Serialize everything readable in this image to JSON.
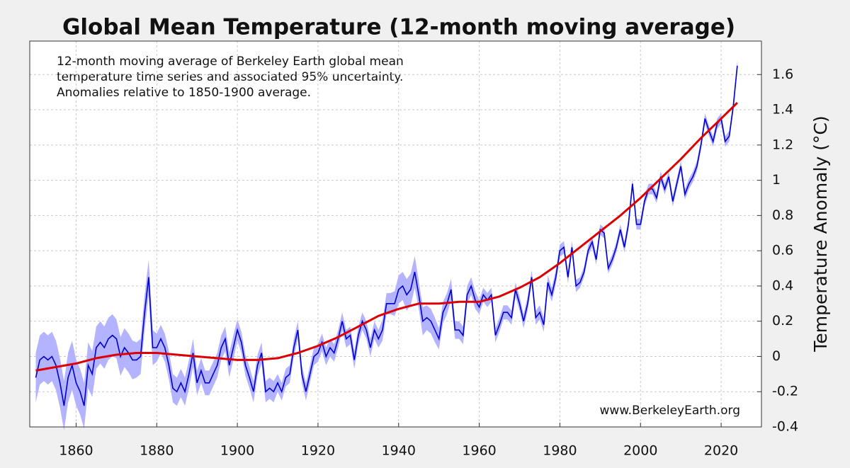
{
  "chart_data": {
    "type": "line",
    "title": "Global Mean Temperature (12-month moving average)",
    "annotation": [
      "12-month moving average of Berkeley Earth global mean",
      "temperature time series and associated 95% uncertainty.",
      "Anomalies relative to 1850-1900 average."
    ],
    "source": "www.BerkeleyEarth.org",
    "ylabel": "Temperature Anomaly (°C)",
    "xlim": [
      1848.5,
      2030
    ],
    "ylim": [
      -0.4,
      1.79
    ],
    "xticks": [
      1860,
      1880,
      1900,
      1920,
      1940,
      1960,
      1980,
      2000,
      2020
    ],
    "yticks": [
      -0.4,
      -0.2,
      0,
      0.2,
      0.4,
      0.6,
      0.8,
      1,
      1.2,
      1.4,
      1.6
    ],
    "grid": true,
    "x": [
      1850,
      1851,
      1852,
      1853,
      1854,
      1855,
      1856,
      1857,
      1858,
      1859,
      1860,
      1861,
      1862,
      1863,
      1864,
      1865,
      1866,
      1867,
      1868,
      1869,
      1870,
      1871,
      1872,
      1873,
      1874,
      1875,
      1876,
      1877,
      1878,
      1879,
      1880,
      1881,
      1882,
      1883,
      1884,
      1885,
      1886,
      1887,
      1888,
      1889,
      1890,
      1891,
      1892,
      1893,
      1894,
      1895,
      1896,
      1897,
      1898,
      1899,
      1900,
      1901,
      1902,
      1903,
      1904,
      1905,
      1906,
      1907,
      1908,
      1909,
      1910,
      1911,
      1912,
      1913,
      1914,
      1915,
      1916,
      1917,
      1918,
      1919,
      1920,
      1921,
      1922,
      1923,
      1924,
      1925,
      1926,
      1927,
      1928,
      1929,
      1930,
      1931,
      1932,
      1933,
      1934,
      1935,
      1936,
      1937,
      1938,
      1939,
      1940,
      1941,
      1942,
      1943,
      1944,
      1945,
      1946,
      1947,
      1948,
      1949,
      1950,
      1951,
      1952,
      1953,
      1954,
      1955,
      1956,
      1957,
      1958,
      1959,
      1960,
      1961,
      1962,
      1963,
      1964,
      1965,
      1966,
      1967,
      1968,
      1969,
      1970,
      1971,
      1972,
      1973,
      1974,
      1975,
      1976,
      1977,
      1978,
      1979,
      1980,
      1981,
      1982,
      1983,
      1984,
      1985,
      1986,
      1987,
      1988,
      1989,
      1990,
      1991,
      1992,
      1993,
      1994,
      1995,
      1996,
      1997,
      1998,
      1999,
      2000,
      2001,
      2002,
      2003,
      2004,
      2005,
      2006,
      2007,
      2008,
      2009,
      2010,
      2011,
      2012,
      2013,
      2014,
      2015,
      2016,
      2017,
      2018,
      2019,
      2020,
      2021,
      2022,
      2023,
      2024
    ],
    "series": [
      {
        "color": "#0000cc",
        "band_color": "#b3b3ff",
        "values": [
          -0.12,
          -0.02,
          0.0,
          -0.02,
          0.0,
          -0.05,
          -0.15,
          -0.28,
          -0.12,
          -0.05,
          -0.15,
          -0.2,
          -0.28,
          -0.05,
          -0.1,
          0.05,
          0.08,
          0.05,
          0.1,
          0.12,
          0.1,
          0.0,
          0.05,
          0.02,
          -0.02,
          -0.02,
          0.0,
          0.25,
          0.45,
          0.05,
          0.05,
          0.1,
          0.05,
          -0.05,
          -0.18,
          -0.2,
          -0.15,
          -0.2,
          -0.1,
          0.02,
          -0.15,
          -0.08,
          -0.15,
          -0.15,
          -0.1,
          -0.05,
          0.05,
          0.1,
          -0.05,
          0.05,
          0.15,
          0.08,
          -0.05,
          -0.12,
          -0.2,
          -0.05,
          0.02,
          -0.2,
          -0.18,
          -0.2,
          -0.15,
          -0.2,
          -0.12,
          -0.1,
          0.05,
          0.15,
          -0.1,
          -0.2,
          -0.1,
          0.0,
          0.02,
          0.08,
          0.0,
          0.05,
          0.02,
          0.1,
          0.2,
          0.1,
          0.12,
          -0.02,
          0.12,
          0.2,
          0.15,
          0.05,
          0.15,
          0.1,
          0.15,
          0.3,
          0.3,
          0.3,
          0.38,
          0.4,
          0.35,
          0.38,
          0.48,
          0.35,
          0.2,
          0.22,
          0.2,
          0.15,
          0.1,
          0.25,
          0.3,
          0.38,
          0.15,
          0.15,
          0.12,
          0.35,
          0.4,
          0.32,
          0.28,
          0.35,
          0.32,
          0.35,
          0.12,
          0.18,
          0.25,
          0.25,
          0.22,
          0.38,
          0.3,
          0.2,
          0.3,
          0.45,
          0.22,
          0.25,
          0.18,
          0.42,
          0.35,
          0.45,
          0.6,
          0.62,
          0.45,
          0.62,
          0.4,
          0.42,
          0.48,
          0.6,
          0.65,
          0.55,
          0.72,
          0.7,
          0.5,
          0.55,
          0.62,
          0.72,
          0.62,
          0.75,
          0.98,
          0.75,
          0.75,
          0.88,
          0.95,
          0.95,
          0.9,
          1.02,
          0.95,
          1.02,
          0.88,
          0.98,
          1.08,
          0.92,
          0.98,
          1.02,
          1.08,
          1.2,
          1.35,
          1.28,
          1.22,
          1.32,
          1.35,
          1.22,
          1.25,
          1.42,
          1.65
        ],
        "errors": [
          0.14,
          0.14,
          0.14,
          0.14,
          0.14,
          0.14,
          0.14,
          0.14,
          0.14,
          0.14,
          0.13,
          0.13,
          0.13,
          0.13,
          0.13,
          0.12,
          0.12,
          0.12,
          0.12,
          0.12,
          0.11,
          0.11,
          0.11,
          0.11,
          0.11,
          0.1,
          0.1,
          0.1,
          0.1,
          0.1,
          0.08,
          0.08,
          0.08,
          0.08,
          0.08,
          0.08,
          0.08,
          0.08,
          0.08,
          0.08,
          0.07,
          0.07,
          0.07,
          0.07,
          0.07,
          0.07,
          0.07,
          0.07,
          0.07,
          0.07,
          0.06,
          0.06,
          0.06,
          0.06,
          0.06,
          0.06,
          0.06,
          0.06,
          0.06,
          0.06,
          0.05,
          0.05,
          0.05,
          0.05,
          0.05,
          0.05,
          0.05,
          0.05,
          0.05,
          0.05,
          0.05,
          0.05,
          0.05,
          0.05,
          0.05,
          0.05,
          0.05,
          0.05,
          0.05,
          0.05,
          0.05,
          0.05,
          0.05,
          0.05,
          0.05,
          0.05,
          0.06,
          0.06,
          0.06,
          0.07,
          0.08,
          0.08,
          0.09,
          0.09,
          0.09,
          0.08,
          0.08,
          0.07,
          0.07,
          0.07,
          0.06,
          0.06,
          0.06,
          0.06,
          0.05,
          0.05,
          0.05,
          0.05,
          0.05,
          0.05,
          0.04,
          0.04,
          0.04,
          0.04,
          0.04,
          0.04,
          0.04,
          0.04,
          0.04,
          0.04,
          0.04,
          0.04,
          0.04,
          0.04,
          0.04,
          0.04,
          0.04,
          0.04,
          0.04,
          0.04,
          0.035,
          0.035,
          0.035,
          0.035,
          0.035,
          0.03,
          0.03,
          0.03,
          0.03,
          0.03,
          0.03,
          0.03,
          0.03,
          0.03,
          0.03,
          0.03,
          0.03,
          0.03,
          0.03,
          0.03,
          0.03,
          0.03,
          0.03,
          0.03,
          0.03,
          0.03,
          0.03,
          0.03,
          0.03,
          0.03,
          0.03,
          0.03,
          0.03,
          0.03,
          0.03,
          0.03,
          0.03,
          0.03,
          0.03,
          0.03,
          0.03,
          0.03,
          0.03,
          0.03,
          0.03
        ]
      }
    ],
    "fit": {
      "color": "#dd0000",
      "x": [
        1850,
        1855,
        1860,
        1865,
        1870,
        1875,
        1880,
        1885,
        1890,
        1895,
        1900,
        1905,
        1910,
        1915,
        1920,
        1925,
        1930,
        1935,
        1940,
        1945,
        1950,
        1955,
        1960,
        1965,
        1970,
        1975,
        1980,
        1985,
        1990,
        1995,
        2000,
        2005,
        2010,
        2015,
        2020,
        2024
      ],
      "values": [
        -0.08,
        -0.06,
        -0.04,
        -0.01,
        0.01,
        0.02,
        0.02,
        0.01,
        0.0,
        -0.01,
        -0.02,
        -0.02,
        -0.01,
        0.02,
        0.06,
        0.11,
        0.17,
        0.23,
        0.27,
        0.3,
        0.3,
        0.31,
        0.31,
        0.34,
        0.39,
        0.45,
        0.53,
        0.62,
        0.71,
        0.8,
        0.9,
        1.01,
        1.12,
        1.24,
        1.35,
        1.44
      ]
    }
  }
}
